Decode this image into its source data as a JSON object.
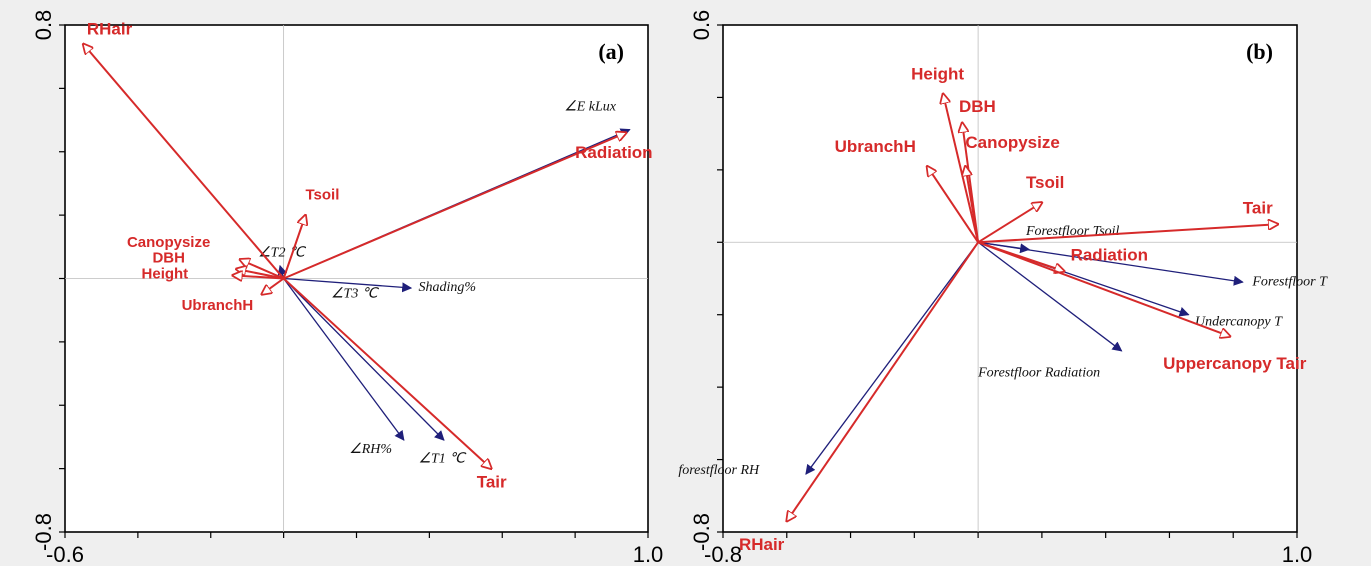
{
  "colors": {
    "response": "#d62a2a",
    "explanatory": "#1f1f7a",
    "frame": "#000000",
    "zero": "#bdbdbd"
  },
  "chart_data": [
    {
      "type": "scatter",
      "title": "",
      "panel_label": "(a)",
      "xlim": [
        -0.6,
        1.0
      ],
      "ylim": [
        -0.8,
        0.8
      ],
      "x_tick_labels": [
        "-0.6",
        "1.0"
      ],
      "y_tick_labels": [
        "0.8",
        "-0.8"
      ],
      "x_minor_ticks": [
        -0.6,
        -0.4,
        -0.2,
        0.0,
        0.2,
        0.4,
        0.6,
        0.8,
        1.0
      ],
      "y_minor_ticks": [
        -0.8,
        -0.6,
        -0.4,
        -0.2,
        0.0,
        0.2,
        0.4,
        0.6,
        0.8
      ],
      "series": [
        {
          "name": "",
          "style": "red-open-arrow",
          "points": [
            {
              "label": "RHair",
              "x": -0.55,
              "y": 0.74,
              "lx": -0.54,
              "ly": 0.77,
              "size": "big"
            },
            {
              "label": "Radiation",
              "x": 0.94,
              "y": 0.46,
              "lx": 0.8,
              "ly": 0.38,
              "size": "big"
            },
            {
              "label": "Tsoil",
              "x": 0.06,
              "y": 0.2,
              "lx": 0.06,
              "ly": 0.25
            },
            {
              "label": "Canopysize",
              "x": -0.12,
              "y": 0.06,
              "lx": -0.43,
              "ly": 0.1
            },
            {
              "label": "DBH",
              "x": -0.13,
              "y": 0.03,
              "lx": -0.36,
              "ly": 0.05
            },
            {
              "label": "Height",
              "x": -0.14,
              "y": 0.01,
              "lx": -0.39,
              "ly": 0.0
            },
            {
              "label": "UbranchH",
              "x": -0.06,
              "y": -0.05,
              "lx": -0.28,
              "ly": -0.1
            },
            {
              "label": "Tair",
              "x": 0.57,
              "y": -0.6,
              "lx": 0.53,
              "ly": -0.66,
              "size": "big"
            }
          ]
        },
        {
          "name": "",
          "style": "blue-solid-arrow",
          "points": [
            {
              "label": "∠E kLux",
              "x": 0.95,
              "y": 0.47,
              "lx": 0.77,
              "ly": 0.53
            },
            {
              "label": "∠T2 ℃",
              "x": -0.01,
              "y": 0.04,
              "lx": -0.07,
              "ly": 0.07
            },
            {
              "label": "Shading%",
              "x": 0.35,
              "y": -0.03,
              "lx": 0.37,
              "ly": -0.04
            },
            {
              "label": "∠T3 ℃",
              "x": 0.0,
              "y": 0.0,
              "lx": 0.13,
              "ly": -0.06
            },
            {
              "label": "∠RH%",
              "x": 0.33,
              "y": -0.51,
              "lx": 0.18,
              "ly": -0.55
            },
            {
              "label": "∠T1 ℃",
              "x": 0.44,
              "y": -0.51,
              "lx": 0.37,
              "ly": -0.58
            }
          ]
        }
      ]
    },
    {
      "type": "scatter",
      "title": "",
      "panel_label": "(b)",
      "xlim": [
        -0.8,
        1.0
      ],
      "ylim": [
        -0.8,
        0.6
      ],
      "x_tick_labels": [
        "-0.8",
        "1.0"
      ],
      "y_tick_labels": [
        "0.6",
        "-0.8"
      ],
      "x_minor_ticks": [
        -0.8,
        -0.6,
        -0.4,
        -0.2,
        0.0,
        0.2,
        0.4,
        0.6,
        0.8,
        1.0
      ],
      "y_minor_ticks": [
        -0.8,
        -0.6,
        -0.4,
        -0.2,
        0.0,
        0.2,
        0.4,
        0.6
      ],
      "series": [
        {
          "name": "",
          "style": "red-open-arrow",
          "points": [
            {
              "label": "Height",
              "x": -0.11,
              "y": 0.41,
              "lx": -0.21,
              "ly": 0.45,
              "size": "big"
            },
            {
              "label": "DBH",
              "x": -0.05,
              "y": 0.33,
              "lx": -0.06,
              "ly": 0.36,
              "size": "big"
            },
            {
              "label": "Canopysize",
              "x": -0.04,
              "y": 0.21,
              "lx": -0.04,
              "ly": 0.26,
              "size": "big"
            },
            {
              "label": "UbranchH",
              "x": -0.16,
              "y": 0.21,
              "lx": -0.45,
              "ly": 0.25,
              "size": "big"
            },
            {
              "label": "Tsoil",
              "x": 0.2,
              "y": 0.11,
              "lx": 0.15,
              "ly": 0.15,
              "size": "big"
            },
            {
              "label": "Tair",
              "x": 0.94,
              "y": 0.05,
              "lx": 0.83,
              "ly": 0.08,
              "size": "big"
            },
            {
              "label": "Radiation",
              "x": 0.27,
              "y": -0.08,
              "lx": 0.29,
              "ly": -0.05,
              "size": "big"
            },
            {
              "label": "Uppercanopy Tair",
              "x": 0.79,
              "y": -0.26,
              "lx": 0.58,
              "ly": -0.35,
              "size": "big"
            },
            {
              "label": "RHair",
              "x": -0.6,
              "y": -0.77,
              "lx": -0.75,
              "ly": -0.85,
              "size": "big"
            }
          ]
        },
        {
          "name": "",
          "style": "blue-solid-arrow",
          "points": [
            {
              "label": "Forestfloor Tsoil",
              "x": 0.16,
              "y": -0.02,
              "lx": 0.15,
              "ly": 0.02
            },
            {
              "label": "Forestfloor T",
              "x": 0.83,
              "y": -0.11,
              "lx": 0.86,
              "ly": -0.12
            },
            {
              "label": "Undercanopy T",
              "x": 0.66,
              "y": -0.2,
              "lx": 0.68,
              "ly": -0.23
            },
            {
              "label": "Forestfloor Radiation",
              "x": 0.45,
              "y": -0.3,
              "lx": 0.0,
              "ly": -0.37
            },
            {
              "label": "forestfloor RH",
              "x": -0.54,
              "y": -0.64,
              "lx": -0.94,
              "ly": -0.64
            }
          ]
        }
      ]
    }
  ]
}
